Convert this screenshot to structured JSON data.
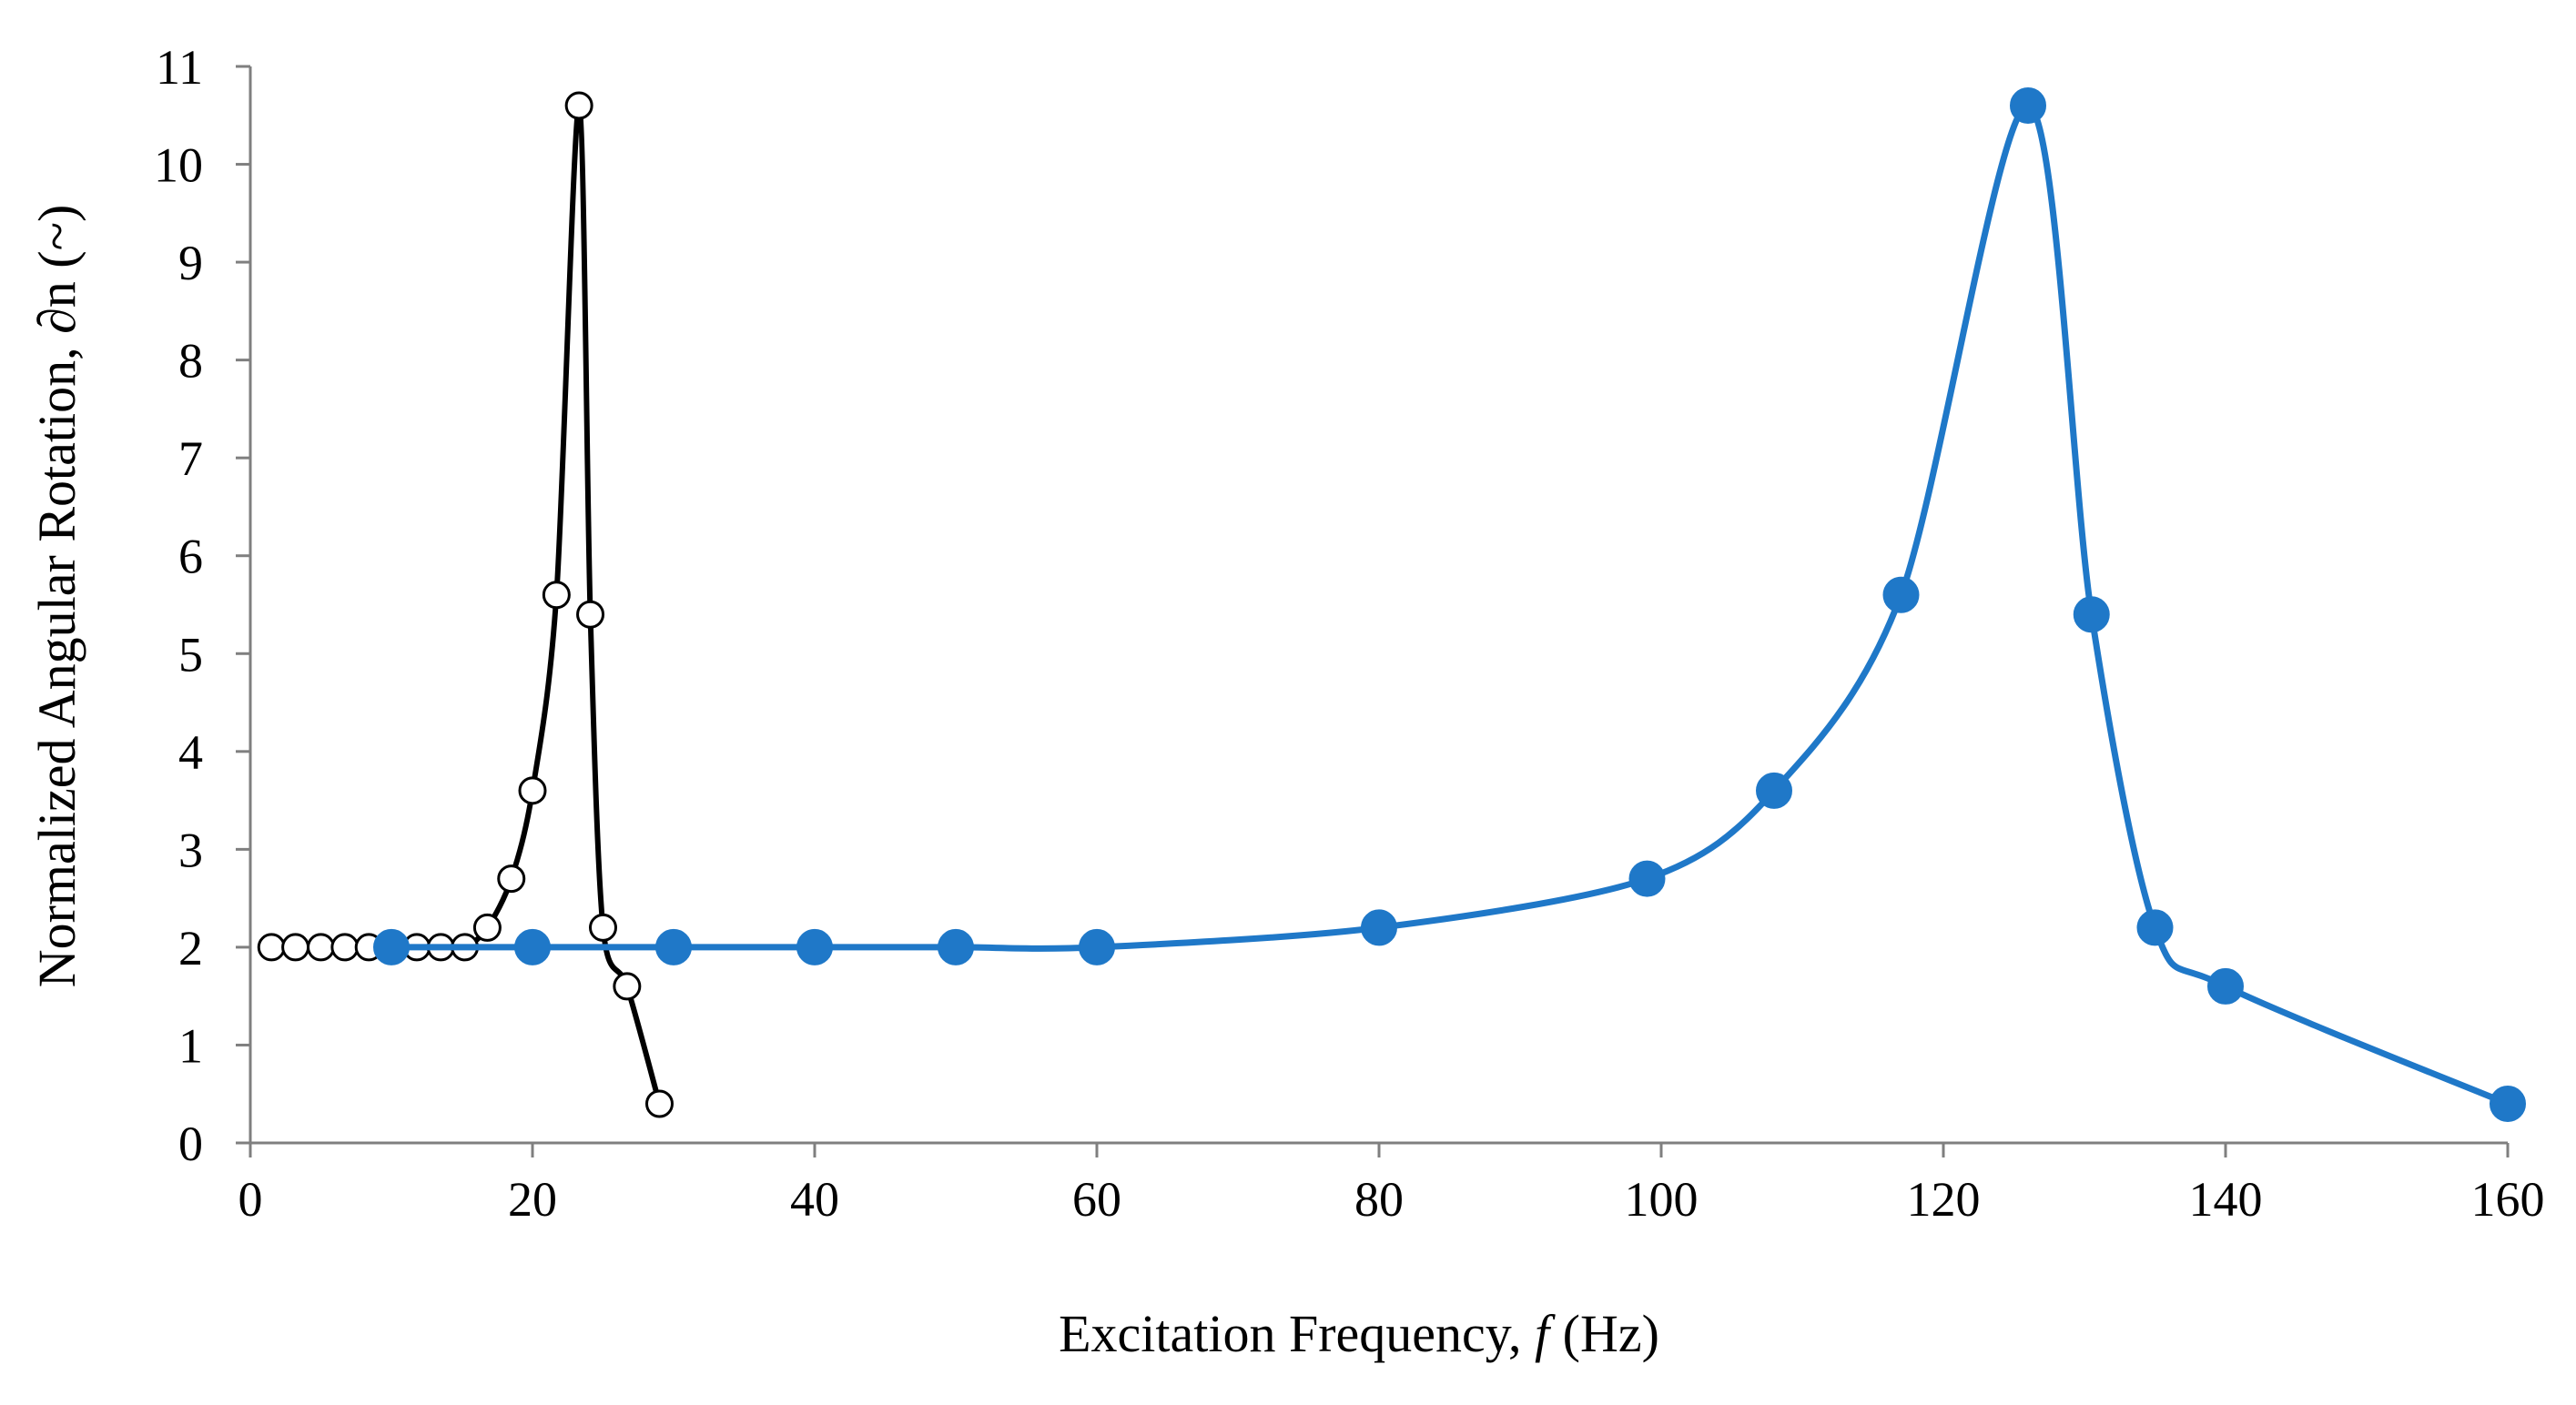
{
  "colors": {
    "series_black": "#000000",
    "series_blue": "#1f78c8",
    "open_marker_fill": "#ffffff",
    "axis": "#7f7f7f"
  },
  "chart_data": {
    "type": "line",
    "title": "",
    "xlabel": "Excitation Frequency, f (Hz)",
    "xlabel_parts": {
      "prefix": "Excitation Frequency, ",
      "italic": "f",
      "suffix": " (Hz)"
    },
    "ylabel": "Normalized Angular Rotation, ∂n (~)",
    "xlim": [
      0,
      160
    ],
    "ylim": [
      0,
      11
    ],
    "xticks": [
      0,
      20,
      40,
      60,
      80,
      100,
      120,
      140,
      160
    ],
    "yticks": [
      0,
      1,
      2,
      3,
      4,
      5,
      6,
      7,
      8,
      9,
      10,
      11
    ],
    "grid": false,
    "legend": "none",
    "series": [
      {
        "name": "open-circle series",
        "marker": "open-circle",
        "color": "#000000",
        "smooth": true,
        "points": [
          [
            1.5,
            2.0
          ],
          [
            3.2,
            2.0
          ],
          [
            5.0,
            2.0
          ],
          [
            6.7,
            2.0
          ],
          [
            8.4,
            2.0
          ],
          [
            10.1,
            2.0
          ],
          [
            11.8,
            2.0
          ],
          [
            13.5,
            2.0
          ],
          [
            15.2,
            2.0
          ],
          [
            16.8,
            2.2
          ],
          [
            18.5,
            2.7
          ],
          [
            20.0,
            3.6
          ],
          [
            21.7,
            5.6
          ],
          [
            23.3,
            10.6
          ],
          [
            24.1,
            5.4
          ],
          [
            25.0,
            2.2
          ],
          [
            26.7,
            1.6
          ],
          [
            29.0,
            0.4
          ]
        ]
      },
      {
        "name": "filled-circle series",
        "marker": "filled-circle",
        "color": "#1f78c8",
        "smooth": true,
        "points": [
          [
            10,
            2.0
          ],
          [
            20,
            2.0
          ],
          [
            30,
            2.0
          ],
          [
            40,
            2.0
          ],
          [
            50,
            2.0
          ],
          [
            60,
            2.0
          ],
          [
            80,
            2.2
          ],
          [
            99,
            2.7
          ],
          [
            108,
            3.6
          ],
          [
            117,
            5.6
          ],
          [
            126,
            10.6
          ],
          [
            130.5,
            5.4
          ],
          [
            135,
            2.2
          ],
          [
            140,
            1.6
          ],
          [
            160,
            0.4
          ]
        ]
      }
    ]
  }
}
